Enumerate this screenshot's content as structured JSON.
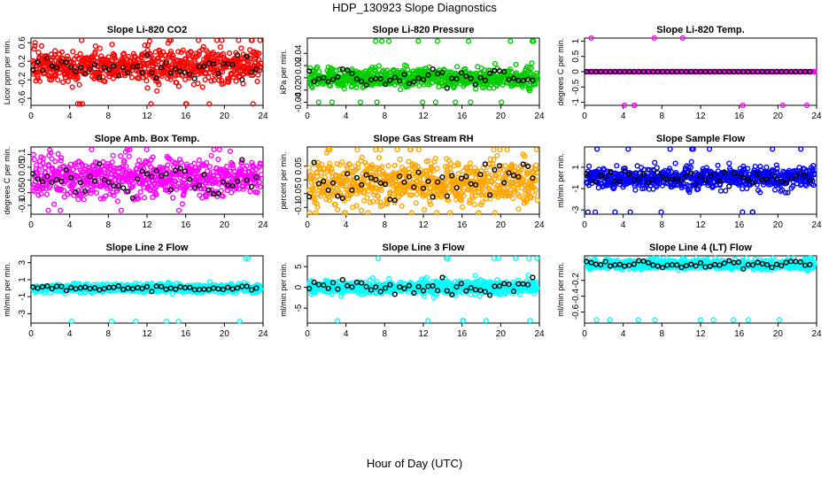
{
  "figure": {
    "title": "HDP_130923  Slope Diagnostics",
    "xlabel": "Hour of Day (UTC)"
  },
  "chart_data": [
    {
      "type": "scatter",
      "title": "Slope Li-820 CO2",
      "ylabel": "Licor ppm per min.",
      "xlim": [
        0,
        24
      ],
      "ylim": [
        -0.75,
        0.7
      ],
      "xticks": [
        0,
        4,
        8,
        12,
        16,
        20,
        24
      ],
      "yticks": [
        -0.6,
        -0.2,
        0.2,
        0.6
      ],
      "x_at": "HH:00",
      "grid": false,
      "series": [
        {
          "color": "#ff0000",
          "n": 720,
          "center": 0.1,
          "spread": 0.18,
          "min": -0.72,
          "max": 0.65
        },
        {
          "color": "#000000",
          "n": 48,
          "center": 0.05,
          "spread": 0.12
        }
      ]
    },
    {
      "type": "scatter",
      "title": "Slope Li-820 Pressure",
      "ylabel": "kPa per min.",
      "xlim": [
        0,
        24
      ],
      "ylim": [
        -0.045,
        0.065
      ],
      "xticks": [
        0,
        4,
        8,
        12,
        16,
        20,
        24
      ],
      "yticks": [
        -0.04,
        -0.02,
        0.0,
        0.02,
        0.04
      ],
      "grid": false,
      "series": [
        {
          "color": "#00cc00",
          "n": 720,
          "center": 0.0,
          "spread": 0.008,
          "min": -0.04,
          "max": 0.06
        },
        {
          "color": "#000000",
          "n": 48,
          "center": 0.0,
          "spread": 0.006
        }
      ]
    },
    {
      "type": "scatter",
      "title": "Slope Li-820 Temp.",
      "ylabel": "degrees C per min.",
      "xlim": [
        0,
        24
      ],
      "ylim": [
        -1.1,
        1.1
      ],
      "xticks": [
        0,
        4,
        8,
        12,
        16,
        20,
        24
      ],
      "yticks": [
        -1.0,
        -0.5,
        0.0,
        0.5,
        1.0
      ],
      "grid": false,
      "series": [
        {
          "color": "#ff00ff",
          "n": 720,
          "center": 0.0,
          "spread": 0.0
        },
        {
          "color": "#000000",
          "n": 48,
          "center": 0.0,
          "spread": 0.0
        }
      ]
    },
    {
      "type": "scatter",
      "title": "Slope Amb. Box Temp.",
      "ylabel": "degrees C per min.",
      "xlim": [
        0,
        24
      ],
      "ylim": [
        -0.135,
        0.13
      ],
      "xticks": [
        0,
        4,
        8,
        12,
        16,
        20,
        24
      ],
      "yticks": [
        -0.1,
        -0.05,
        0.0,
        0.05,
        0.1
      ],
      "grid": false,
      "series": [
        {
          "color": "#ff00ff",
          "n": 720,
          "center": 0.01,
          "spread": 0.04,
          "min": -0.12,
          "max": 0.12
        },
        {
          "color": "#000000",
          "n": 48,
          "center": 0.0,
          "spread": 0.03
        }
      ]
    },
    {
      "type": "scatter",
      "title": "Slope Gas Stream RH",
      "ylabel": "percent per min.",
      "xlim": [
        0,
        24
      ],
      "ylim": [
        -0.125,
        0.12
      ],
      "xticks": [
        0,
        4,
        8,
        12,
        16,
        20,
        24
      ],
      "yticks": [
        -0.1,
        -0.05,
        0.0,
        0.05
      ],
      "grid": false,
      "series": [
        {
          "color": "#ffa500",
          "n": 720,
          "center": -0.01,
          "spread": 0.04,
          "min": -0.12,
          "max": 0.11
        },
        {
          "color": "#000000",
          "n": 48,
          "center": -0.01,
          "spread": 0.035
        }
      ]
    },
    {
      "type": "scatter",
      "title": "Slope Sample Flow",
      "ylabel": "ml/min per min.",
      "xlim": [
        0,
        24
      ],
      "ylim": [
        -3.4,
        2.9
      ],
      "xticks": [
        0,
        4,
        8,
        12,
        16,
        20,
        24
      ],
      "yticks": [
        -3,
        -1,
        1
      ],
      "grid": false,
      "series": [
        {
          "color": "#0000ff",
          "n": 720,
          "center": 0.0,
          "spread": 0.5,
          "min": -3.2,
          "max": 2.7
        },
        {
          "color": "#000000",
          "n": 48,
          "center": 0.0,
          "spread": 0.35
        }
      ]
    },
    {
      "type": "scatter",
      "title": "Slope Line 2 Flow",
      "ylabel": "ml/min per min.",
      "xlim": [
        0,
        24
      ],
      "ylim": [
        -4.1,
        3.8
      ],
      "xticks": [
        0,
        4,
        8,
        12,
        16,
        20,
        24
      ],
      "yticks": [
        -3,
        -1,
        1,
        3
      ],
      "grid": false,
      "series": [
        {
          "color": "#00ffff",
          "n": 720,
          "center": 0.0,
          "spread": 0.25,
          "min": -3.9,
          "max": 3.5
        },
        {
          "color": "#000000",
          "n": 48,
          "center": 0.0,
          "spread": 0.15
        }
      ]
    },
    {
      "type": "scatter",
      "title": "Slope Line 3 Flow",
      "ylabel": "ml/min per min.",
      "xlim": [
        0,
        24
      ],
      "ylim": [
        -8.6,
        7.6
      ],
      "xticks": [
        0,
        4,
        8,
        12,
        16,
        20,
        24
      ],
      "yticks": [
        -5,
        0,
        5
      ],
      "grid": false,
      "series": [
        {
          "color": "#00ffff",
          "n": 720,
          "center": 0.0,
          "spread": 0.8,
          "min": -8,
          "max": 7
        },
        {
          "color": "#000000",
          "n": 48,
          "center": 0.0,
          "spread": 1.0
        }
      ]
    },
    {
      "type": "scatter",
      "title": "Slope Line 4 (LT) Flow",
      "ylabel": "ml/min per min.",
      "xlim": [
        0,
        24
      ],
      "ylim": [
        -0.74,
        0.11
      ],
      "xticks": [
        0,
        4,
        8,
        12,
        16,
        20,
        24
      ],
      "yticks": [
        -0.6,
        -0.4,
        -0.2
      ],
      "grid": false,
      "series": [
        {
          "color": "#00ffff",
          "n": 720,
          "center": 0.0,
          "spread": 0.03,
          "min": -0.7,
          "max": 0.08
        },
        {
          "color": "#000000",
          "n": 48,
          "center": 0.0,
          "spread": 0.02
        }
      ]
    }
  ]
}
